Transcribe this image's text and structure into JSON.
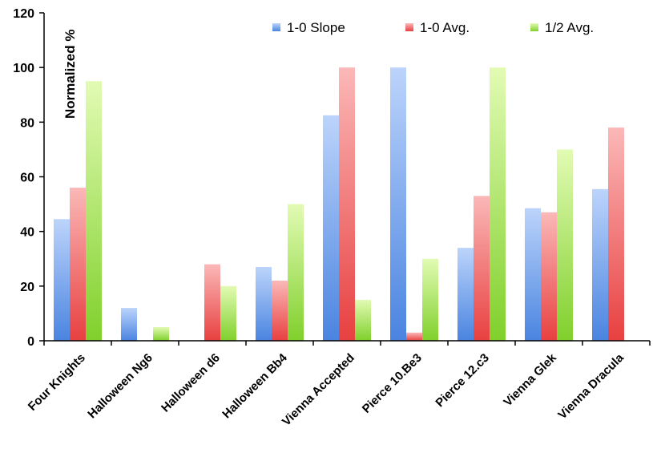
{
  "chart_data": {
    "type": "bar",
    "title": "",
    "xlabel": "",
    "ylabel": "Normalized %",
    "ylim": [
      0,
      120
    ],
    "yticks": [
      "0",
      "20",
      "40",
      "60",
      "80",
      "100",
      "120"
    ],
    "grid": false,
    "legend_position": "top-right",
    "categories": [
      "Four Knights",
      "Halloween Ng6",
      "Halloween d6",
      "Halloween Bb4",
      "Vienna Accepted",
      "Pierce 10.Be3",
      "Pierce 12.c3",
      "Vienna Glek",
      "Vienna Dracula"
    ],
    "series": [
      {
        "name": "1-0 Slope",
        "color": "#4a84e0",
        "values": [
          44.5,
          12,
          0,
          27,
          82.5,
          100,
          34,
          48.5,
          55.5
        ]
      },
      {
        "name": "1-0 Avg.",
        "color": "#ee4a4a",
        "values": [
          56,
          0,
          28,
          22,
          100,
          3,
          53,
          47,
          78
        ]
      },
      {
        "name": "1/2 Avg.",
        "color": "#8fd83a",
        "values": [
          95,
          5,
          20,
          50,
          15,
          30,
          100,
          70,
          0
        ]
      }
    ]
  }
}
